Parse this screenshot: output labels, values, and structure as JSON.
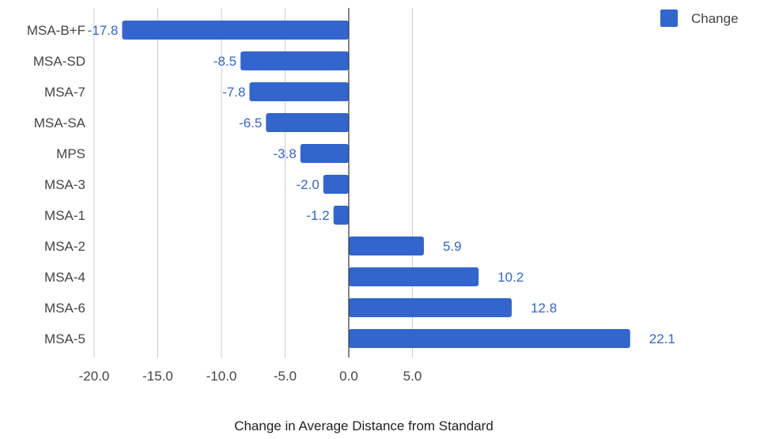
{
  "chart_data": {
    "type": "bar",
    "orientation": "horizontal",
    "categories": [
      "MSA-B+F",
      "MSA-SD",
      "MSA-7",
      "MSA-SA",
      "MPS",
      "MSA-3",
      "MSA-1",
      "MSA-2",
      "MSA-4",
      "MSA-6",
      "MSA-5"
    ],
    "series": [
      {
        "name": "Change",
        "values": [
          -17.8,
          -8.5,
          -7.8,
          -6.5,
          -3.8,
          -2.0,
          -1.2,
          5.9,
          10.2,
          12.8,
          22.1
        ],
        "labels": [
          "-17.8",
          "-8.5",
          "-7.8",
          "-6.5",
          "-3.8",
          "-2.0",
          "-1.2",
          "5.9",
          "10.2",
          "12.8",
          "22.1"
        ]
      }
    ],
    "xlabel": "Change in Average Distance from Standard",
    "ylabel": "",
    "xlim": [
      -20,
      22.1
    ],
    "xticks": [
      -20,
      -15,
      -10,
      -5,
      0,
      5
    ],
    "xtick_labels": [
      "-20.0",
      "-15.0",
      "-10.0",
      "-5.0",
      "0.0",
      "5.0"
    ],
    "grid": true,
    "legend_position": "top-right",
    "colors": {
      "bar": "#3366cc",
      "grid": "#cccccc",
      "zero_line": "#333333"
    }
  }
}
